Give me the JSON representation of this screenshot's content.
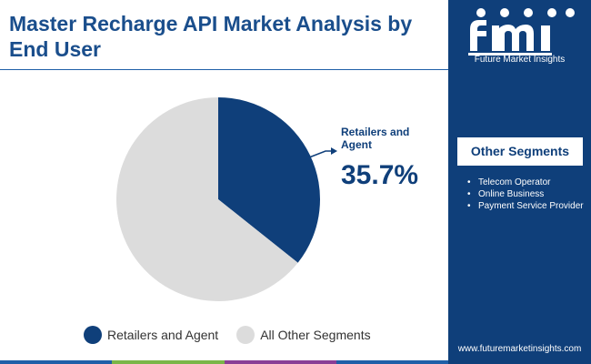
{
  "header": {
    "title": "Master Recharge API Market Analysis by End User"
  },
  "brand": {
    "logo_text": "Future Market Insights",
    "website": "www.futuremarketinsights.com"
  },
  "other_segments": {
    "title": "Other Segments",
    "items": [
      "Telecom Operator",
      "Online Business",
      "Payment Service Provider"
    ]
  },
  "callout": {
    "label": "Retailers and Agent",
    "value": "35.7%"
  },
  "colors": {
    "highlight": "#0f3f7a",
    "other": "#dcdcdc",
    "panel": "#0f3f7a",
    "bottom_bar": [
      "#1f5fa8",
      "#7ab648",
      "#8a3e96",
      "#1f5fa8"
    ]
  },
  "chart_data": {
    "type": "pie",
    "title": "Master Recharge API Market Analysis by End User",
    "slices": [
      {
        "label": "Retailers and Agent",
        "value": 35.7,
        "color": "#0f3f7a"
      },
      {
        "label": "All Other Segments",
        "value": 64.3,
        "color": "#dcdcdc"
      }
    ],
    "start_angle": "12 o'clock",
    "direction": "clockwise",
    "legend": {
      "position": "bottom",
      "entries": [
        "Retailers and Agent",
        "All Other Segments"
      ]
    }
  }
}
